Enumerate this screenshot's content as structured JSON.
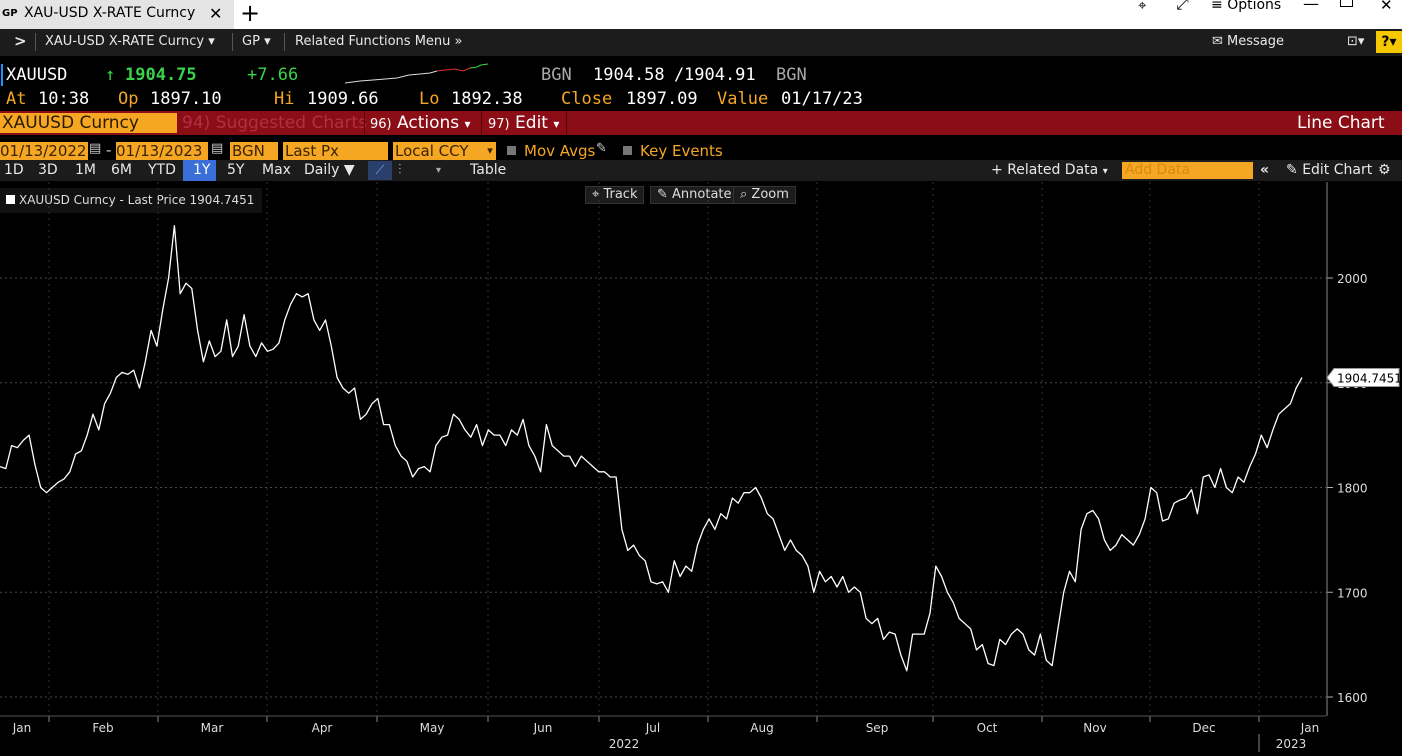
{
  "tab": {
    "icon": "GP",
    "title": "XAU-USD X-RATE Curncy",
    "close": "✕",
    "new": "+"
  },
  "window": {
    "options": "Options"
  },
  "menubar": {
    "security": "XAU-USD X-RATE Curncy",
    "function": "GP",
    "related": "Related Functions Menu",
    "message": "Message",
    "help": "?"
  },
  "quote": {
    "ticker": "XAUUSD",
    "arrow": "↑",
    "last": "1904.75",
    "change": "+7.66",
    "source": "BGN",
    "bid": "1904.58",
    "slash": "/",
    "ask": "1904.91",
    "source2": "BGN",
    "at_label": "At",
    "at": "10:38",
    "op_label": "Op",
    "op": "1897.10",
    "hi_label": "Hi",
    "hi": "1909.66",
    "lo_label": "Lo",
    "lo": "1892.38",
    "close_label": "Close",
    "close": "1897.09",
    "value_label": "Value",
    "value": "01/17/23"
  },
  "toolbar": {
    "security_box": "XAUUSD Curncy",
    "suggested": "94) Suggested Charts",
    "actions_num": "96)",
    "actions": "Actions",
    "edit_num": "97)",
    "edit": "Edit",
    "chart_type": "Line Chart"
  },
  "controls": {
    "start": "01/13/2022",
    "dash": "-",
    "end": "01/13/2023",
    "source": "BGN",
    "field": "Last Px",
    "currency": "Local CCY",
    "mov_avgs": "Mov Avgs",
    "key_events": "Key Events"
  },
  "range": {
    "buttons": [
      "1D",
      "3D",
      "1M",
      "6M",
      "YTD",
      "1Y",
      "5Y",
      "Max"
    ],
    "active": "1Y",
    "period": "Daily",
    "table": "Table",
    "related_data": "Related Data",
    "add_data_placeholder": "Add Data",
    "edit_chart": "Edit Chart"
  },
  "chart_tools": {
    "track": "Track",
    "annotate": "Annotate",
    "zoom": "Zoom"
  },
  "legend": {
    "label": "XAUUSD Curncy - Last Price 1904.7451"
  },
  "colors": {
    "accent_orange": "#f5a623",
    "red_bar": "#8b0d16",
    "up_green": "#3ad34a"
  },
  "chart_data": {
    "type": "line",
    "series": [
      {
        "name": "XAUUSD Curncy - Last Price",
        "last_value_label": "1904.7451",
        "color": "#ffffff",
        "values": [
          1820,
          1818,
          1840,
          1838,
          1845,
          1850,
          1822,
          1800,
          1795,
          1800,
          1805,
          1808,
          1815,
          1832,
          1835,
          1850,
          1870,
          1855,
          1880,
          1890,
          1905,
          1910,
          1908,
          1912,
          1895,
          1920,
          1950,
          1935,
          1970,
          2000,
          2050,
          1985,
          1995,
          1990,
          1950,
          1920,
          1940,
          1925,
          1930,
          1960,
          1925,
          1935,
          1965,
          1935,
          1925,
          1938,
          1930,
          1932,
          1938,
          1960,
          1975,
          1985,
          1982,
          1985,
          1960,
          1950,
          1960,
          1935,
          1905,
          1895,
          1890,
          1895,
          1865,
          1870,
          1880,
          1885,
          1860,
          1860,
          1840,
          1830,
          1825,
          1810,
          1818,
          1820,
          1815,
          1840,
          1848,
          1850,
          1870,
          1865,
          1855,
          1848,
          1860,
          1840,
          1855,
          1850,
          1850,
          1840,
          1855,
          1850,
          1865,
          1840,
          1830,
          1815,
          1860,
          1840,
          1835,
          1830,
          1830,
          1820,
          1830,
          1825,
          1820,
          1815,
          1815,
          1810,
          1810,
          1760,
          1740,
          1745,
          1735,
          1730,
          1710,
          1708,
          1710,
          1700,
          1730,
          1715,
          1725,
          1720,
          1745,
          1760,
          1770,
          1760,
          1775,
          1770,
          1790,
          1785,
          1795,
          1795,
          1800,
          1790,
          1775,
          1770,
          1755,
          1740,
          1750,
          1740,
          1735,
          1725,
          1700,
          1720,
          1710,
          1715,
          1705,
          1715,
          1700,
          1705,
          1700,
          1675,
          1670,
          1675,
          1655,
          1662,
          1660,
          1640,
          1625,
          1660,
          1660,
          1660,
          1680,
          1725,
          1715,
          1700,
          1690,
          1675,
          1670,
          1665,
          1645,
          1650,
          1632,
          1630,
          1655,
          1650,
          1660,
          1665,
          1660,
          1645,
          1640,
          1660,
          1635,
          1630,
          1665,
          1700,
          1720,
          1710,
          1760,
          1775,
          1778,
          1770,
          1750,
          1740,
          1745,
          1755,
          1750,
          1745,
          1755,
          1770,
          1800,
          1795,
          1768,
          1770,
          1785,
          1788,
          1790,
          1798,
          1775,
          1810,
          1812,
          1800,
          1818,
          1800,
          1795,
          1810,
          1805,
          1820,
          1832,
          1850,
          1838,
          1855,
          1870,
          1875,
          1880,
          1895,
          1905
        ]
      }
    ],
    "x_labels": [
      "Jan",
      "Feb",
      "Mar",
      "Apr",
      "May",
      "Jun",
      "Jul",
      "Aug",
      "Sep",
      "Oct",
      "Nov",
      "Dec",
      "Jan"
    ],
    "x_year_labels": [
      "2022",
      "2023"
    ],
    "y_ticks": [
      1600,
      1700,
      1800,
      1900,
      2000
    ],
    "y_tick_labels": [
      "1600",
      "1700",
      "1800",
      "1900",
      "2000"
    ],
    "ylim": [
      1560,
      2080
    ],
    "grid": true
  }
}
